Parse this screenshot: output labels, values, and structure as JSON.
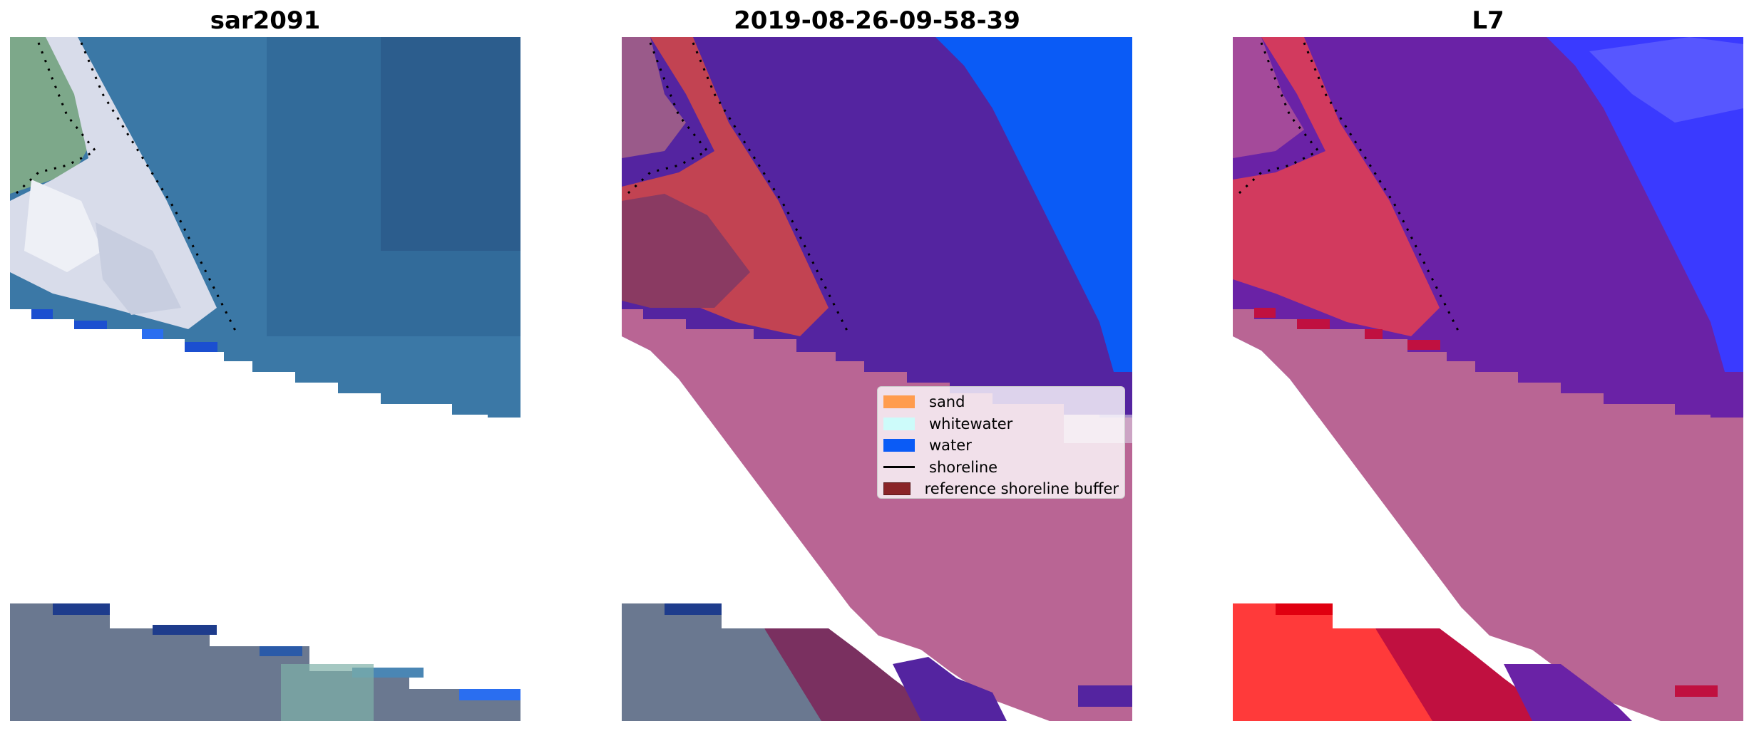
{
  "panels": [
    {
      "title": "sar2091"
    },
    {
      "title": "2019-08-26-09-58-39"
    },
    {
      "title": "L7"
    }
  ],
  "legend": {
    "items": [
      {
        "label": "sand",
        "color": "#ff9c4e",
        "kind": "patch"
      },
      {
        "label": "whitewater",
        "color": "#cdfbfa",
        "kind": "patch"
      },
      {
        "label": "water",
        "color": "#0a5bf6",
        "kind": "patch"
      },
      {
        "label": "shoreline",
        "color": "#000000",
        "kind": "line"
      },
      {
        "label": "reference shoreline buffer",
        "color": "#8a2428",
        "kind": "patch"
      }
    ]
  },
  "colors": {
    "ocean": "#3b78a6",
    "deep_ocean": "#2c5a8c",
    "surf": "#d8dcea",
    "beach_green": "#7da88a",
    "land_gray": "#6a7890",
    "class_water_overlay": "#5424a0",
    "class_water": "#0a5bf6",
    "class_buffer": "#b96594",
    "class_sand_overlay": "#c24352",
    "index_land": "#d23a5e",
    "index_red": "#ff3a3a",
    "index_purple": "#6a22a6",
    "index_blue": "#3a3aff",
    "nodata": "#ffffff"
  }
}
